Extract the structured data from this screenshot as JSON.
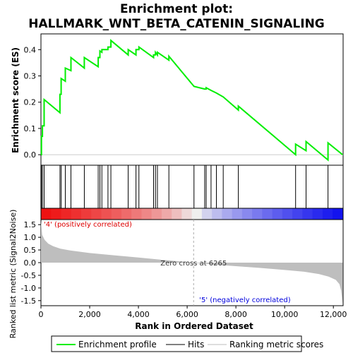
{
  "chart_data": {
    "type": "line",
    "title_line1": "Enrichment plot:",
    "title_line2": "HALLMARK_WNT_BETA_CATENIN_SIGNALING",
    "es_ylabel": "Enrichment score (ES)",
    "metric_ylabel": "Ranked list metric (Signal2Noise)",
    "xlabel": "Rank in Ordered Dataset",
    "xlim": [
      0,
      12400
    ],
    "es_ylim": [
      -0.04,
      0.46
    ],
    "metric_ylim": [
      -1.7,
      1.7
    ],
    "x_ticks": [
      0,
      2000,
      4000,
      6000,
      8000,
      10000,
      12000
    ],
    "x_tick_labels": [
      "0",
      "2,000",
      "4,000",
      "6,000",
      "8,000",
      "10,000",
      "12,000"
    ],
    "es_ticks": [
      0.0,
      0.1,
      0.2,
      0.3,
      0.4
    ],
    "es_tick_labels": [
      "0.0",
      "0.1",
      "0.2",
      "0.3",
      "0.4"
    ],
    "metric_ticks": [
      1.5,
      1.0,
      0.5,
      0.0,
      -0.5,
      -1.0,
      -1.5
    ],
    "metric_tick_labels": [
      "1.5",
      "1.0",
      "0.5",
      "0.0",
      "-0.5",
      "-1.0",
      "-1.5"
    ],
    "hits": [
      20,
      60,
      130,
      780,
      830,
      1000,
      1230,
      1780,
      2350,
      2420,
      2500,
      2750,
      2870,
      3580,
      3900,
      4020,
      4620,
      4700,
      4780,
      5250,
      6280,
      6720,
      6780,
      6980,
      7200,
      7480,
      8100,
      10450,
      10880,
      11780
    ],
    "es_profile": {
      "x": [
        0,
        20,
        20,
        60,
        60,
        130,
        130,
        780,
        780,
        830,
        830,
        1000,
        1000,
        1230,
        1230,
        1780,
        1780,
        2350,
        2350,
        2420,
        2420,
        2500,
        2500,
        2750,
        2750,
        2870,
        2870,
        3580,
        3580,
        3900,
        3900,
        4020,
        4020,
        4620,
        4620,
        4700,
        4700,
        4780,
        4780,
        5250,
        5250,
        6280,
        6280,
        6720,
        6780,
        6780,
        6980,
        6980,
        7200,
        7200,
        7480,
        7480,
        8100,
        8100,
        10450,
        10450,
        10880,
        10880,
        11780,
        11780,
        12380
      ],
      "y": [
        0.0,
        0.0,
        0.07,
        0.07,
        0.11,
        0.11,
        0.21,
        0.16,
        0.23,
        0.23,
        0.29,
        0.28,
        0.33,
        0.32,
        0.37,
        0.33,
        0.37,
        0.335,
        0.37,
        0.37,
        0.395,
        0.39,
        0.4,
        0.4,
        0.41,
        0.41,
        0.435,
        0.38,
        0.4,
        0.38,
        0.4,
        0.4,
        0.41,
        0.37,
        0.38,
        0.38,
        0.39,
        0.38,
        0.39,
        0.36,
        0.375,
        0.26,
        0.26,
        0.25,
        0.25,
        0.255,
        0.245,
        0.245,
        0.235,
        0.235,
        0.22,
        0.22,
        0.17,
        0.185,
        0.0,
        0.04,
        0.015,
        0.05,
        -0.02,
        0.045,
        0.0
      ]
    },
    "metric_shape": {
      "rank": [
        0,
        50,
        150,
        300,
        500,
        800,
        1200,
        2000,
        3000,
        4000,
        5000,
        6265,
        7000,
        8000,
        9000,
        10000,
        10800,
        11400,
        11800,
        12100,
        12250,
        12320,
        12380
      ],
      "value": [
        1.65,
        1.1,
        0.9,
        0.75,
        0.65,
        0.55,
        0.48,
        0.38,
        0.29,
        0.2,
        0.11,
        0.0,
        -0.07,
        -0.14,
        -0.21,
        -0.29,
        -0.36,
        -0.45,
        -0.55,
        -0.68,
        -0.85,
        -1.1,
        -1.6
      ]
    },
    "zero_cross_rank": 6265,
    "zero_cross_label": "Zero cross at 6265",
    "pos_label": "'4' (positively correlated)",
    "neg_label": "'5' (negatively correlated)",
    "colors": {
      "es_line": "#00ee00",
      "hits": "#000000",
      "metric_fill": "#bebebe",
      "pos_text": "#dd0000",
      "neg_text": "#0000dd",
      "bar_red": "#ee0000",
      "bar_blue": "#0000dd"
    },
    "legend": [
      {
        "label": "Enrichment profile",
        "kind": "green-line"
      },
      {
        "label": "Hits",
        "kind": "black-line"
      },
      {
        "label": "Ranking metric scores",
        "kind": "gray-line"
      }
    ]
  }
}
